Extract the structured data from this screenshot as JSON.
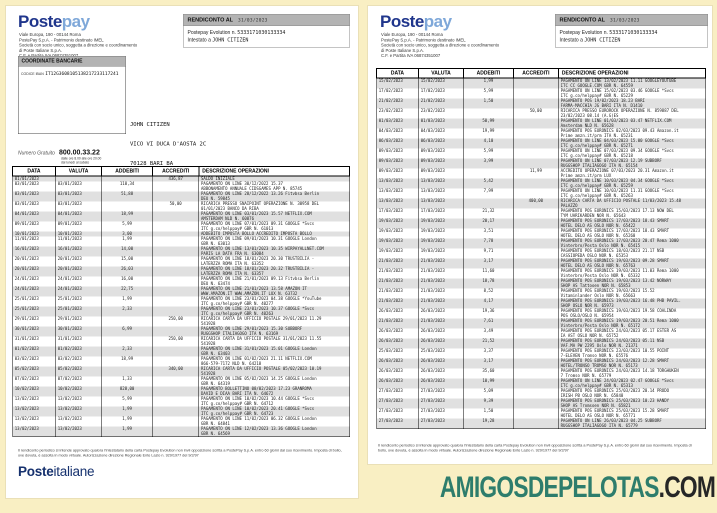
{
  "colors": {
    "background": "#f9efc3",
    "header_bar": "#b3b3b3",
    "row_stripe": "#e0e0e0",
    "postepay_navy": "#20368c",
    "postepay_blue": "#7fa8d9",
    "posteitaliane_navy": "#16316e",
    "watermark_teal": "#2e7d6c",
    "watermark_dark": "#262626"
  },
  "watermark": {
    "brand": "AMIGOSDEPELOTAS",
    "suffix": ".COM"
  },
  "doc": {
    "brand": {
      "poste": "Poste",
      "pay": "pay"
    },
    "sender_lines": [
      "Viale Europa, 190 - 00144 Roma",
      "PostePay S.p.A. - Patrimonio destinato IMEL",
      "Società con socio unico, soggetta a direzione e coordinamento",
      "di Poste Italiane S.p.A.",
      "C.F. e Partita IVA 06874351007"
    ],
    "rendiconto": {
      "label": "RENDICONTO AL",
      "date": "31/03/2023",
      "card_label": "Postepay Evolution n.",
      "card_number": "5333171030133334",
      "holder_label": "Intestato a",
      "holder": "JOHN CITIZEN"
    },
    "coordinate": {
      "title": "COORDINATE BANCARIE",
      "iban_label": "CODICE IBAN",
      "iban": "IT12G3608105138217233117241"
    },
    "recipient_lines": [
      "JOHN CITIZEN",
      "VICO VI DUCA D'AOSTA 2C",
      "70128 BARI BA"
    ],
    "numero_gratuito": {
      "label": "Numero Gratuito",
      "number": "800.00.33.22",
      "notes": [
        "dalle ore 8.00 alle ore 20.00",
        "dal lunedì al sabato"
      ]
    },
    "table_headers": [
      "DATA",
      "VALUTA",
      "ADDEBITI",
      "ACCREDITI",
      "DESCRIZIONE OPERAZIONI"
    ],
    "footnote": "Il rendiconto periodico si intende approvato qualora l'intestatario della carta Postepay Evolution non invii opposizione scritta a PostePay S.p.A. entro 60 giorni dal suo ricevimento. Imposta di bollo, ove dovuta, è assolta in modo virtuale. Autorizzazione direzione Regionale Ente Lazio n. 929/1977 del 9/2/97",
    "footer_brand": {
      "poste": "Poste",
      "italiane": "italiane"
    }
  },
  "page1_table": {
    "rows": [
      {
        "d": "01/01/2023",
        "v": "",
        "a": "",
        "c": "436,87",
        "o": [
          "SALDO INIZIALE"
        ]
      },
      {
        "d": "03/01/2023",
        "v": "03/01/2023",
        "a": "110,34",
        "c": "",
        "o": [
          "PAGAMENTO ON LINE 30/12/2022 15.37",
          "ABBONAMENTO ANNUALE CIDSGAMES APP N. 85745"
        ]
      },
      {
        "d": "03/01/2023",
        "v": "03/01/2023",
        "a": "51,88",
        "c": "",
        "o": [
          "PAGAMENTO ON LINE 28/12/2022 13.26 Fitvbsa Berlin",
          "DEU N. 59845"
        ]
      },
      {
        "d": "03/01/2023",
        "v": "03/01/2023",
        "a": "",
        "c": "50,00",
        "o": [
          "RICARICA PRESSO SNAIPOINT OPERAZIONE N. 30958 DEL",
          "01/01/2023 BANCO DA RIBA"
        ]
      },
      {
        "d": "04/01/2023",
        "v": "04/01/2023",
        "a": "18,99",
        "c": "",
        "o": [
          "PAGAMENTO ON LINE 03/01/2023 15.57 NETFLIX.COM",
          "AMSTERDAM NLD N. 60876"
        ]
      },
      {
        "d": "09/01/2023",
        "v": "09/01/2023",
        "a": "5,99",
        "c": "",
        "o": [
          "PAGAMENTO ON LINE 07/01/2023 09.31 GOOGLE *Svcs",
          "ITC g.co/helppay# GBR N. 61013"
        ]
      },
      {
        "d": "10/01/2023",
        "v": "10/01/2023",
        "a": "3,00",
        "c": "",
        "o": [
          "ADDEBITO IMPOSTA BOLLO ACCREDITO IMPOSTA BOLLO"
        ]
      },
      {
        "d": "11/01/2023",
        "v": "11/01/2023",
        "a": "1,99",
        "c": "",
        "o": [
          "PAGAMENTO ON LINE 09/01/2023 10.31 GOOGLE London",
          "GBR N. 63013"
        ]
      },
      {
        "d": "16/01/2023",
        "v": "16/01/2023",
        "a": "14,00",
        "c": "",
        "o": [
          "PAGAMENTO ON LINE 13/01/2023 10.35 WIRPAYALLNET.COM",
          "PARIS LA DATA FRA N. 63084"
        ]
      },
      {
        "d": "20/01/2023",
        "v": "20/01/2023",
        "a": "15,00",
        "c": "",
        "o": [
          "PAGAMENTO ON LINE 18/01/2023 20.30 TRUSTBILIA -",
          "LATERZZA ROMA ITA N. 63352"
        ]
      },
      {
        "d": "20/01/2023",
        "v": "20/01/2023",
        "a": "26,03",
        "c": "",
        "o": [
          "PAGAMENTO ON LINE 18/01/2023 20.32 TRUSTBILIA -",
          "LATERZZA ROMA ITA N. 63357"
        ]
      },
      {
        "d": "24/01/2023",
        "v": "24/01/2023",
        "a": "16,00",
        "c": "",
        "o": [
          "PAGAMENTO ON LINE 21/01/2023 09.13 Fitvbsa Berlin",
          "DEU N. 63474"
        ]
      },
      {
        "d": "24/01/2023",
        "v": "24/01/2023",
        "a": "22,75",
        "c": "",
        "o": [
          "PAGAMENTO ON LINE 21/01/2023 13.58 AMAZON IT",
          "WWW.AMAZON.IT WWW.AMAZON.IT LUX N. 63732"
        ]
      },
      {
        "d": "25/01/2023",
        "v": "25/01/2023",
        "a": "1,99",
        "c": "",
        "o": [
          "PAGAMENTO ON LINE 23/01/2023 04.38 GOOGLE *YouTube",
          "ITC g.co/helppay# GBR N. 40277"
        ]
      },
      {
        "d": "25/01/2023",
        "v": "25/01/2023",
        "a": "2,33",
        "c": "",
        "o": [
          "PAGAMENTO ON LINE 23/01/2023 10.37 GOOGLE *Svcs",
          "ITC g.co/helppay# GBR N. 40263"
        ]
      },
      {
        "d": "29/01/2023",
        "v": "29/01/2023",
        "a": "",
        "c": "250,00",
        "o": [
          "RICARICA CARTA DA UFFICIO POSTALE 29/01/2023 11.29",
          "541928"
        ]
      },
      {
        "d": "30/01/2023",
        "v": "30/01/2023",
        "a": "6,99",
        "c": "",
        "o": [
          "PAGAMENTO ON LINE 29/01/2023 15.30 SUBBORF",
          "RUGGSHOP ITALIAGOGO ITA N. 63169"
        ]
      },
      {
        "d": "31/01/2023",
        "v": "31/01/2023",
        "a": "",
        "c": "250,00",
        "o": [
          "RICARICA CARTA DA UFFICIO POSTALE 31/01/2023 11.55",
          "541928"
        ]
      },
      {
        "d": "01/02/2023",
        "v": "01/02/2023",
        "a": "2,33",
        "c": "",
        "o": [
          "PAGAMENTO ON LINE 31/01/2023 15.01 GOOGLE London",
          "GBR N. 63403"
        ]
      },
      {
        "d": "03/02/2023",
        "v": "03/02/2023",
        "a": "18,99",
        "c": "",
        "o": [
          "PAGAMENTO ON LINE 01/02/2023 21.11 NETFLIX.COM",
          "866-579-7172 NLD N. 64218"
        ]
      },
      {
        "d": "05/02/2023",
        "v": "05/02/2023",
        "a": "",
        "c": "340,00",
        "o": [
          "RICARICA CARTA DA UFFICIO POSTALE 05/02/2023 10.19",
          "541928"
        ]
      },
      {
        "d": "07/02/2023",
        "v": "07/02/2023",
        "a": "1,33",
        "c": "",
        "o": [
          "PAGAMENTO ON LINE 05/02/2023 14.25 GOOGLE London",
          "GBR N. 64319"
        ]
      },
      {
        "d": "10/02/2023",
        "v": "10/02/2023",
        "a": "828,00",
        "c": "",
        "o": [
          "PAGAMENTO BOLLETTINO 08/02/2023 17.23 GRANROMA",
          "DAVID E DIAA BARI ITA N. 64672"
        ]
      },
      {
        "d": "13/02/2023",
        "v": "13/02/2023",
        "a": "5,99",
        "c": "",
        "o": [
          "PAGAMENTO ON LINE 10/02/2023 10.44 GOOGLE *Svcs",
          "ITC g.co/helppay# GBR N. 64712"
        ]
      },
      {
        "d": "13/02/2023",
        "v": "13/02/2023",
        "a": "1,99",
        "c": "",
        "o": [
          "PAGAMENTO ON LINE 10/02/2023 20.41 GOOGLE *Svcs",
          "ITC g.co/helppay# GBR N. 64723"
        ]
      },
      {
        "d": "13/02/2023",
        "v": "13/02/2023",
        "a": "1,99",
        "c": "",
        "o": [
          "PAGAMENTO ON LINE 11/02/2023 06.32 GOOGLE London",
          "GBR N. 64841"
        ]
      },
      {
        "d": "13/02/2023",
        "v": "13/02/2023",
        "a": "1,99",
        "c": "",
        "o": [
          "PAGAMENTO ON LINE 12/02/2023 13.36 GOOGLE London",
          "GBR N. 64569"
        ]
      }
    ]
  },
  "page2_table": {
    "rows": [
      {
        "d": "15/02/2023",
        "v": "15/02/2023",
        "a": "1,99",
        "c": "",
        "o": [
          "PAGAMENTO ON LINE 13/02/2023 11.11 GOOGLEYOUTUBE",
          "ITC CC GOOGLE.COM GBR N. 64559"
        ]
      },
      {
        "d": "17/02/2023",
        "v": "17/02/2023",
        "a": "5,99",
        "c": "",
        "o": [
          "PAGAMENTO ON LINE 15/02/2023 03.46 GOOGLE *Svcs",
          "ITC g.co/helppay# GBR N. 65229"
        ]
      },
      {
        "d": "21/02/2023",
        "v": "21/02/2023",
        "a": "1,50",
        "c": "",
        "o": [
          "PAGAMENTO POS 19/02/2023 18.23 BARI",
          "FARMA-MACCHIA JG BARI ITA N. D1410"
        ]
      },
      {
        "d": "23/02/2023",
        "v": "23/02/2023",
        "a": "",
        "c": "50,00",
        "o": [
          "RICARICA PRESSO EUROROCK OPERAZIONE N. 859887 DEL",
          "23/02/2023 08.14 (A.G)ES"
        ]
      },
      {
        "d": "01/03/2023",
        "v": "01/03/2023",
        "a": "50,99",
        "c": "",
        "o": [
          "PAGAMENTO ON LINE 01/03/2023 03.47 NETFLIX.COM",
          "Amsterdam NLD N. 65628"
        ]
      },
      {
        "d": "04/03/2023",
        "v": "04/03/2023",
        "a": "19,99",
        "c": "",
        "o": [
          "PAGAMENTO POS EURONICS 02/03/2023 09.43 Amazon.it",
          "Prime amzn.it/prm ITA N. 65231"
        ]
      },
      {
        "d": "06/03/2023",
        "v": "06/03/2023",
        "a": "4,10",
        "c": "",
        "o": [
          "PAGAMENTO ON LINE 04/03/2023 15.00 GOOGLE *Svcs",
          "ITC g.co/helppay# GBR N. 65271"
        ]
      },
      {
        "d": "09/03/2023",
        "v": "09/03/2023",
        "a": "5,99",
        "c": "",
        "o": [
          "PAGAMENTO ON LINE 07/03/2023 09.34 GOOGLE *Svcs",
          "ITC g.co/helppay# GBR N. 65218"
        ]
      },
      {
        "d": "09/03/2023",
        "v": "09/03/2023",
        "a": "3,99",
        "c": "",
        "o": [
          "PAGAMENTO ON LINE 07/03/2023 12.19 SUBBORF",
          "RUGGSHOP ITALIAGOGO ITA N. 65154"
        ]
      },
      {
        "d": "09/03/2023",
        "v": "09/03/2023",
        "a": "",
        "c": "11,99",
        "o": [
          "ACCREDITO OPERAZIONE 07/03/2023 20.31 Amazon.it",
          "Prime amzn.it/prm LUX"
        ]
      },
      {
        "d": "13/03/2023",
        "v": "13/03/2023",
        "a": "5,42",
        "c": "",
        "o": [
          "PAGAMENTO ON LINE 10/03/2023 04.34 GOOGLE *Svcs",
          "ITC g.co/helppay# GBR N. 65259"
        ]
      },
      {
        "d": "13/03/2023",
        "v": "13/03/2023",
        "a": "7,99",
        "c": "",
        "o": [
          "PAGAMENTO ON LINE 10/03/2023 11.31 GOOGLE *Svcs",
          "ITC g.co/helppay# GBR N. 65263"
        ]
      },
      {
        "d": "13/03/2023",
        "v": "13/03/2023",
        "a": "",
        "c": "400,00",
        "o": [
          "RICARICA CARTA DA UFFICIO POSTALE 11/03/2023 15.48",
          "PALAZZO"
        ]
      },
      {
        "d": "17/03/2023",
        "v": "17/03/2023",
        "a": "21,32",
        "c": "",
        "o": [
          "PAGAMENTO POS EURONICS 15/03/2023 17.13 NOW DEL",
          "TYM UARIKARDEN NOR N. 65643"
        ]
      },
      {
        "d": "19/03/2023",
        "v": "19/03/2023",
        "a": "20,17",
        "c": "",
        "o": [
          "PAGAMENTO POS EURONICS 17/03/2023 18.43 SMART",
          "HOTEL DELO AS OSLO NOR N. 65422"
        ]
      },
      {
        "d": "19/03/2023",
        "v": "19/03/2023",
        "a": "3,51",
        "c": "",
        "o": [
          "PAGAMENTO POS EURONICS 17/03/2023 18.43 SMART",
          "HOTEL DELO AS OSLO NOR N. 65260"
        ]
      },
      {
        "d": "19/03/2023",
        "v": "19/03/2023",
        "a": "7,78",
        "c": "",
        "o": [
          "PAGAMENTO POS EURONICS 17/03/2023 20.47 Rema 1000",
          "Vinterbro/Posta Oslo NOR N. 65415"
        ]
      },
      {
        "d": "19/03/2023",
        "v": "19/03/2023",
        "a": "9,71",
        "c": "",
        "o": [
          "PAGAMENTO POS EURONICS 18/03/2023 21.17 NSB",
          "CASSIOPEDA OSLO NOR N. 65353"
        ]
      },
      {
        "d": "21/03/2023",
        "v": "21/03/2023",
        "a": "3,17",
        "c": "",
        "o": [
          "PAGAMENTO POS EURONICS 19/03/2023 09.28 SMART",
          "HOTEL DELO AS OSLO NOR N. 65763"
        ]
      },
      {
        "d": "21/03/2023",
        "v": "21/03/2023",
        "a": "11,60",
        "c": "",
        "o": [
          "PAGAMENTO POS EURONICS 19/03/2023 11.03 Rema 1000",
          "Vinterbro/Posta Oslo NOR N. 65332"
        ]
      },
      {
        "d": "21/03/2023",
        "v": "21/03/2023",
        "a": "18,78",
        "c": "",
        "o": [
          "PAGAMENTO POS EURONICS 19/03/2023 13.42 NORWAY",
          "SHOP AS Tattooen NOR N. 65853"
        ]
      },
      {
        "d": "21/03/2023",
        "v": "21/03/2023",
        "a": "8,52",
        "c": "",
        "o": [
          "PAGAMENTO POS EURONICS 19/03/2023 15.52",
          "Vitaminlander Oslo NOR N. 65663"
        ]
      },
      {
        "d": "21/03/2023",
        "v": "21/03/2023",
        "a": "4,17",
        "c": "",
        "o": [
          "PAGAMENTO POS EURONICS 19/03/2023 16.48 PHB PAVIL.",
          "SHOP OSLO NOR N. 65973"
        ]
      },
      {
        "d": "26/03/2023",
        "v": "26/03/2023",
        "a": "19,36",
        "c": "",
        "o": [
          "PAGAMENTO POS EURONICS 19/03/2023 19.58 COALINDA",
          "POS OSLO/OSLO N. 65954"
        ]
      },
      {
        "d": "21/03/2023",
        "v": "21/03/2023",
        "a": "7,61",
        "c": "",
        "o": [
          "PAGAMENTO POS EURONICS 19/03/2023 20.51 Rema 1000",
          "Vinterbro/Posta Oslo NOR N. 65172"
        ]
      },
      {
        "d": "26/03/2023",
        "v": "26/03/2023",
        "a": "3,49",
        "c": "",
        "o": [
          "PAGAMENTO POS EURONICS 24/03/2023 05.17 ESTER AS",
          "IA AST OSLO NOR N. 65752"
        ]
      },
      {
        "d": "26/03/2023",
        "v": "26/03/2023",
        "a": "21,52",
        "c": "",
        "o": [
          "PAGAMENTO POS EURONICS 24/03/2023 05.11 NSB",
          "VAF.MA PW 2295 Oslo NOR N. 21371"
        ]
      },
      {
        "d": "25/03/2023",
        "v": "25/03/2023",
        "a": "3,37",
        "c": "",
        "o": [
          "PAGAMENTO POS EURONICS 23/03/2023 10.55 POINT",
          "7-ELEVEN Tromso NOR N. 65576"
        ]
      },
      {
        "d": "26/03/2023",
        "v": "26/03/2023",
        "a": "3,17",
        "c": "",
        "o": [
          "PAGAMENTO POS EURONICS 24/03/2023 12.28 SMART",
          "HOTEL/TRONSO TROMSO NOR N. 65173"
        ]
      },
      {
        "d": "26/03/2023",
        "v": "26/03/2023",
        "a": "35,60",
        "c": "",
        "o": [
          "PAGAMENTO POS EURONICS 24/03/2023 14.18 TORGHUKEN",
          "7 Tromso NOR N. 65779"
        ]
      },
      {
        "d": "26/03/2023",
        "v": "26/03/2023",
        "a": "10,99",
        "c": "",
        "o": [
          "PAGAMENTO ON LINE 24/03/2023 02.47 GOOGLE *Svcs",
          "ITC g.co/helppay# GBR N. 65313"
        ]
      },
      {
        "d": "27/03/2023",
        "v": "27/03/2023",
        "a": "5,09",
        "c": "",
        "o": [
          "PAGAMENTO POS EURONICS 25/03/2023 20.14 PRODO",
          "IRISH PB OSLO NOR N. 65848"
        ]
      },
      {
        "d": "27/03/2023",
        "v": "27/03/2023",
        "a": "9,39",
        "c": "",
        "o": [
          "PAGAMENTO POS EURONICS 25/03/2023 10.23 HANDY",
          "SHOP AS Tromsoen NOR N. 65821"
        ]
      },
      {
        "d": "27/03/2023",
        "v": "27/03/2023",
        "a": "1,50",
        "c": "",
        "o": [
          "PAGAMENTO POS EURONICS 25/03/2023 15.28 SMART",
          "HOTEL DELO AS OSLO NOR N. 65771"
        ]
      },
      {
        "d": "27/03/2023",
        "v": "27/03/2023",
        "a": "19,28",
        "c": "",
        "o": [
          "PAGAMENTO ON LINE 26/03/2023 04.25 SUBBORF",
          "RUGGSHOP ITALIAGOGO ITA N. 65779"
        ]
      }
    ]
  }
}
